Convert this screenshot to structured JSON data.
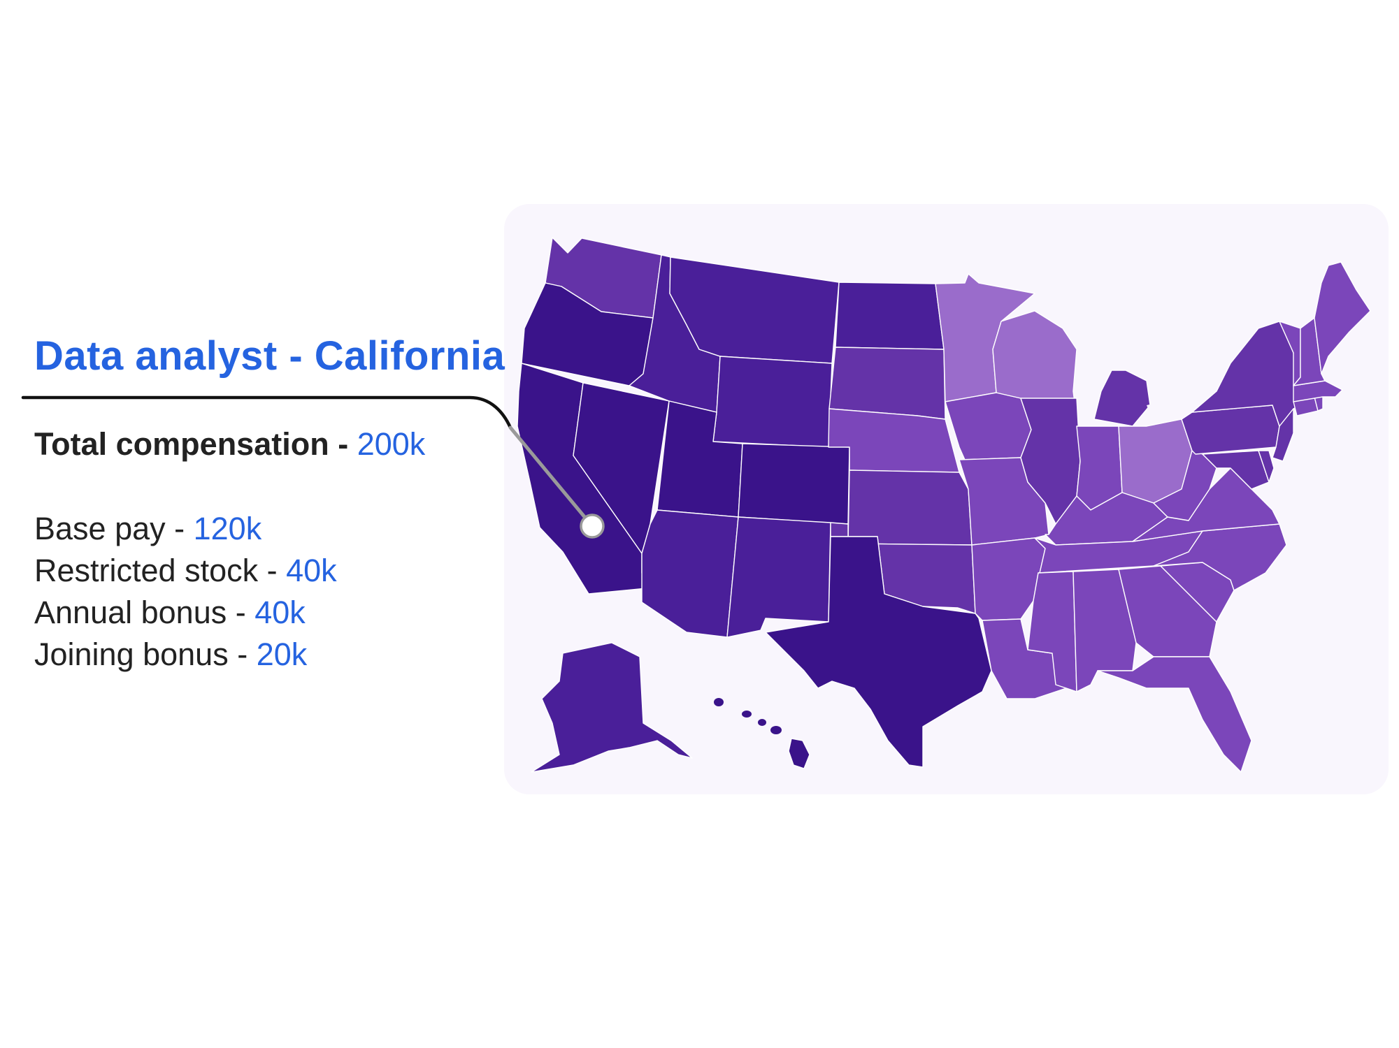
{
  "callout": {
    "title": "Data analyst - California",
    "total": {
      "label": "Total compensation - ",
      "value": "200k"
    },
    "items": [
      {
        "label": "Base pay - ",
        "value": "120k"
      },
      {
        "label": "Restricted stock - ",
        "value": "40k"
      },
      {
        "label": "Annual bonus - ",
        "value": "40k"
      },
      {
        "label": "Joining bonus - ",
        "value": "20k"
      }
    ]
  },
  "colors": {
    "accent": "#2563e0",
    "text": "#222222",
    "card_background": "#f9f6fd",
    "leader_line": "#111111",
    "pin_stroke": "#9a9a9a",
    "state_darkest": "#3a138a",
    "state_dark": "#4a1f99",
    "state_medium": "#6433a8",
    "state_light": "#7b46ba",
    "state_lightest": "#9a6ccb"
  },
  "map": {
    "highlighted_region": "California",
    "color_shades": {
      "Washington": "medium",
      "Oregon": "darkest",
      "California": "darkest",
      "Nevada": "darkest",
      "Idaho": "dark",
      "Montana": "dark",
      "Wyoming": "dark",
      "Utah": "darkest",
      "Arizona": "dark",
      "Colorado": "darkest",
      "New Mexico": "dark",
      "North Dakota": "dark",
      "South Dakota": "medium",
      "Nebraska": "light",
      "Kansas": "medium",
      "Oklahoma": "medium",
      "Texas": "darkest",
      "Minnesota": "lightest",
      "Iowa": "light",
      "Missouri": "light",
      "Arkansas": "light",
      "Louisiana": "light",
      "Wisconsin": "lightest",
      "Illinois": "medium",
      "Michigan": "medium",
      "Indiana": "light",
      "Ohio": "lightest",
      "Kentucky": "light",
      "Tennessee": "light",
      "Mississippi": "light",
      "Alabama": "light",
      "Georgia": "light",
      "Florida": "light",
      "South Carolina": "light",
      "North Carolina": "light",
      "Virginia": "light",
      "West Virginia": "light",
      "Pennsylvania": "medium",
      "New York": "medium",
      "Maryland": "medium",
      "New Jersey": "medium",
      "Delaware": "medium",
      "Connecticut": "light",
      "Rhode Island": "light",
      "Massachusetts": "light",
      "Vermont": "light",
      "New Hampshire": "light",
      "Maine": "light",
      "Alaska": "dark",
      "Hawaii": "darkest"
    }
  }
}
